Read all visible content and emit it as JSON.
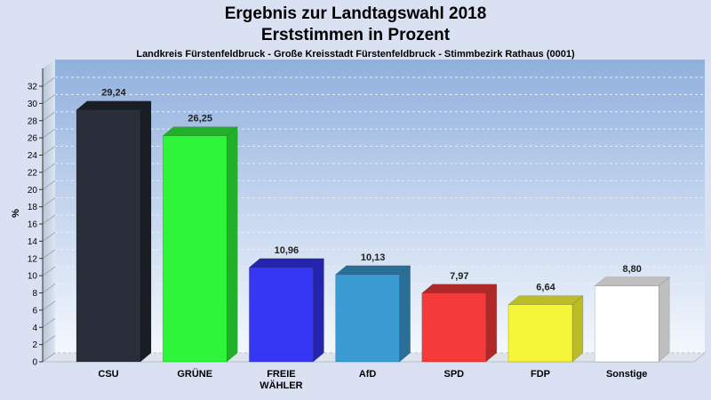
{
  "chart_data": {
    "type": "bar",
    "title": "Ergebnis zur Landtagswahl 2018",
    "title_line2": "Erststimmen in Prozent",
    "subtitle": "Landkreis Fürstenfeldbruck - Große Kreisstadt Fürstenfeldbruck - Stimmbezirk Rathaus (0001)",
    "ylabel": "%",
    "xlabel": "",
    "ylim": [
      0,
      32
    ],
    "yticks": [
      "0",
      "2",
      "4",
      "6",
      "8",
      "10",
      "12",
      "14",
      "16",
      "18",
      "20",
      "22",
      "24",
      "26",
      "28",
      "30",
      "32"
    ],
    "grid": true,
    "categories": [
      [
        "CSU"
      ],
      [
        "GRÜNE"
      ],
      [
        "FREIE",
        "WÄHLER"
      ],
      [
        "AfD"
      ],
      [
        "SPD"
      ],
      [
        "FDP"
      ],
      [
        "Sonstige"
      ]
    ],
    "values": [
      29.24,
      26.25,
      10.96,
      10.13,
      7.97,
      6.64,
      8.8
    ],
    "value_labels": [
      "29,24",
      "26,25",
      "10,96",
      "10,13",
      "7,97",
      "6,64",
      "8,80"
    ],
    "colors": [
      "#2a2e3a",
      "#2ef53a",
      "#3636f5",
      "#3a9ad2",
      "#f53a3a",
      "#f5f53a",
      "#ffffff"
    ],
    "side_colors": [
      "#1b1d25",
      "#22b02b",
      "#2424b0",
      "#2a6f98",
      "#b02929",
      "#bcbc28",
      "#bfbfbf"
    ]
  }
}
